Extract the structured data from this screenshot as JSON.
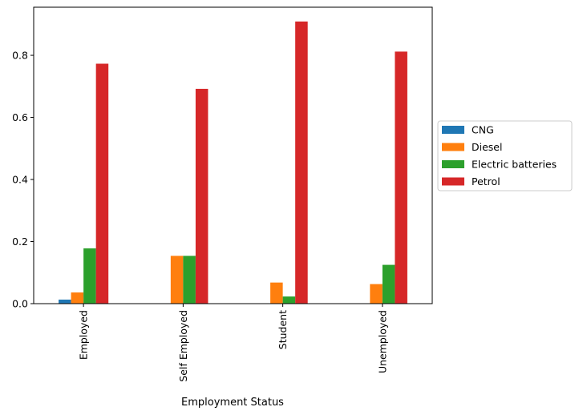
{
  "chart_data": {
    "type": "bar",
    "xlabel": "Employment Status",
    "ylabel": "",
    "title": "",
    "categories": [
      "Employed",
      "Self Employed",
      "Student",
      "Unemployed"
    ],
    "ylim": [
      0,
      0.955
    ],
    "yticks": [
      0.0,
      0.2,
      0.4,
      0.6,
      0.8
    ],
    "ytick_labels": [
      "0.0",
      "0.2",
      "0.4",
      "0.6",
      "0.8"
    ],
    "grid": false,
    "legend_position": "center-right, outside plot",
    "series": [
      {
        "name": "CNG",
        "color": "#1f77b4",
        "values": [
          0.013,
          0.0,
          0.0,
          0.0
        ]
      },
      {
        "name": "Diesel",
        "color": "#ff7f0e",
        "values": [
          0.036,
          0.154,
          0.068,
          0.063
        ]
      },
      {
        "name": "Electric batteries",
        "color": "#2ca02c",
        "values": [
          0.178,
          0.154,
          0.023,
          0.125
        ]
      },
      {
        "name": "Petrol",
        "color": "#d62728",
        "values": [
          0.773,
          0.692,
          0.909,
          0.812
        ]
      }
    ]
  }
}
